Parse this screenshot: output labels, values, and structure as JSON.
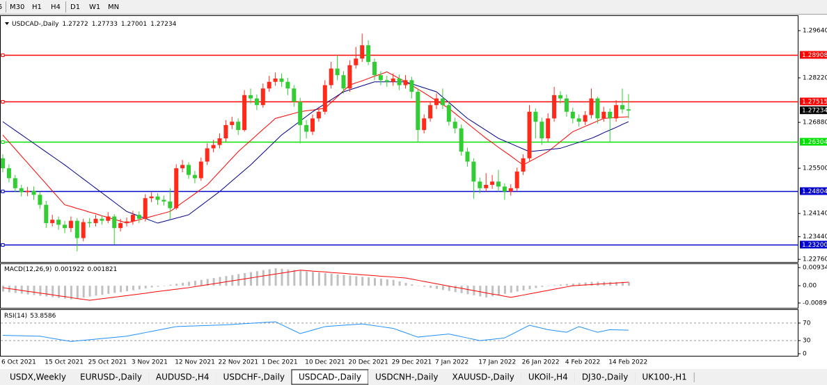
{
  "toolbar": [
    "5",
    "M30",
    "H1",
    "H4",
    "D1",
    "W1",
    "MN"
  ],
  "chart_data": [
    {
      "type": "candlestick",
      "title": "USDCAD-,Daily",
      "categories": [
        "6 Oct 2021",
        null,
        null,
        null,
        null,
        null,
        null,
        "15 Oct 2021",
        null,
        null,
        null,
        null,
        null,
        null,
        "25 Oct 2021",
        null,
        null,
        null,
        null,
        null,
        null,
        "3 Nov 2021",
        null,
        null,
        null,
        null,
        null,
        null,
        "12 Nov 2021",
        null,
        null,
        null,
        null,
        null,
        null,
        "22 Nov 2021",
        null,
        null,
        null,
        null,
        null,
        null,
        "1 Dec 2021",
        null,
        null,
        null,
        null,
        null,
        null,
        "10 Dec 2021",
        null,
        null,
        null,
        null,
        null,
        null,
        "20 Dec 2021",
        null,
        null,
        null,
        null,
        null,
        null,
        "29 Dec 2021",
        null,
        null,
        null,
        null,
        null,
        null,
        "7 Jan 2022",
        null,
        null,
        null,
        null,
        null,
        null,
        "17 Jan 2022",
        null,
        null,
        null,
        null,
        null,
        null,
        "26 Jan 2022",
        null,
        null,
        null,
        null,
        null,
        null,
        "4 Feb 2022",
        null,
        null,
        null,
        null,
        null,
        null,
        "14 Feb 2022",
        null,
        null,
        null
      ],
      "open": [
        1.258,
        1.255,
        1.252,
        1.249,
        1.2478,
        1.2482,
        1.247,
        1.244,
        1.2385,
        1.2395,
        1.238,
        1.237,
        1.2392,
        1.234,
        1.2388,
        1.2385,
        1.2398,
        1.2392,
        1.2405,
        1.237,
        1.2385,
        1.239,
        1.241,
        1.2398,
        1.246,
        1.2465,
        1.2455,
        1.245,
        1.243,
        1.255,
        1.256,
        1.253,
        1.252,
        1.257,
        1.261,
        1.262,
        1.264,
        1.268,
        1.269,
        1.2665,
        1.277,
        1.276,
        1.274,
        1.279,
        1.281,
        1.282,
        1.281,
        1.279,
        1.275,
        1.268,
        1.266,
        1.27,
        1.272,
        1.28,
        1.285,
        1.283,
        1.279,
        1.286,
        1.288,
        1.292,
        1.287,
        1.283,
        1.2815,
        1.281,
        1.282,
        1.28,
        1.2815,
        1.278,
        1.2665,
        1.27,
        1.274,
        1.276,
        1.274,
        1.269,
        1.267,
        1.26,
        1.257,
        1.251,
        1.249,
        1.25,
        1.251,
        1.2495,
        1.248,
        1.249,
        1.254,
        1.258,
        1.272,
        1.269,
        1.264,
        1.27,
        1.277,
        1.276,
        1.272,
        1.27,
        1.269,
        1.271,
        1.276,
        1.27,
        1.272,
        1.27,
        1.274,
        1.27272
      ],
      "high": [
        1.2592,
        1.2562,
        1.253,
        1.25,
        1.2494,
        1.2495,
        1.248,
        1.2452,
        1.241,
        1.2405,
        1.2392,
        1.2405,
        1.24,
        1.2398,
        1.24,
        1.241,
        1.2408,
        1.2418,
        1.2412,
        1.2398,
        1.2402,
        1.2422,
        1.242,
        1.2472,
        1.2478,
        1.2475,
        1.2468,
        1.249,
        1.2562,
        1.2575,
        1.2568,
        1.2542,
        1.2582,
        1.2625,
        1.2635,
        1.2655,
        1.2695,
        1.2705,
        1.27,
        1.2785,
        1.279,
        1.2772,
        1.2805,
        1.2828,
        1.2838,
        1.2835,
        1.2822,
        1.28,
        1.2762,
        1.2695,
        1.2712,
        1.2735,
        1.2815,
        1.287,
        1.289,
        1.2842,
        1.2875,
        1.2915,
        1.2955,
        1.2935,
        1.288,
        1.2842,
        1.2828,
        1.2835,
        1.2832,
        1.283,
        1.2825,
        1.279,
        1.2712,
        1.2752,
        1.2775,
        1.279,
        1.2752,
        1.2702,
        1.2682,
        1.2612,
        1.258,
        1.2522,
        1.2535,
        1.253,
        1.2545,
        1.2505,
        1.2502,
        1.2552,
        1.2592,
        1.274,
        1.273,
        1.2702,
        1.2715,
        1.2795,
        1.2782,
        1.2772,
        1.2732,
        1.2712,
        1.2722,
        1.279,
        1.2765,
        1.2735,
        1.273,
        1.2755,
        1.279,
        1.27733
      ],
      "low": [
        1.2538,
        1.2508,
        1.2478,
        1.2465,
        1.2466,
        1.2455,
        1.2428,
        1.237,
        1.2375,
        1.2365,
        1.2355,
        1.2358,
        1.23,
        1.233,
        1.2372,
        1.2375,
        1.238,
        1.2385,
        1.232,
        1.236,
        1.2375,
        1.238,
        1.2385,
        1.239,
        1.2448,
        1.244,
        1.2438,
        1.2395,
        1.2425,
        1.2538,
        1.2518,
        1.2505,
        1.2512,
        1.256,
        1.2598,
        1.261,
        1.263,
        1.2668,
        1.265,
        1.266,
        1.2745,
        1.2725,
        1.2732,
        1.278,
        1.2798,
        1.2795,
        1.277,
        1.2735,
        1.2625,
        1.264,
        1.265,
        1.269,
        1.2712,
        1.279,
        1.2815,
        1.2775,
        1.278,
        1.285,
        1.287,
        1.286,
        1.2815,
        1.28,
        1.2795,
        1.2798,
        1.2785,
        1.279,
        1.276,
        1.263,
        1.2655,
        1.269,
        1.2728,
        1.2728,
        1.2678,
        1.2655,
        1.2588,
        1.2555,
        1.2458,
        1.2475,
        1.248,
        1.2488,
        1.248,
        1.2455,
        1.2468,
        1.2482,
        1.253,
        1.2572,
        1.264,
        1.262,
        1.263,
        1.269,
        1.2745,
        1.2705,
        1.2685,
        1.2675,
        1.268,
        1.27,
        1.2685,
        1.269,
        1.263,
        1.269,
        1.2715,
        1.27001
      ],
      "close": [
        1.255,
        1.252,
        1.249,
        1.2478,
        1.2482,
        1.247,
        1.244,
        1.2385,
        1.2395,
        1.238,
        1.237,
        1.2392,
        1.234,
        1.2388,
        1.2385,
        1.2398,
        1.2392,
        1.2405,
        1.237,
        1.2385,
        1.239,
        1.241,
        1.2398,
        1.246,
        1.2465,
        1.2455,
        1.245,
        1.243,
        1.255,
        1.256,
        1.253,
        1.252,
        1.257,
        1.261,
        1.262,
        1.264,
        1.268,
        1.269,
        1.2665,
        1.277,
        1.276,
        1.274,
        1.279,
        1.281,
        1.282,
        1.281,
        1.279,
        1.275,
        1.268,
        1.266,
        1.27,
        1.272,
        1.28,
        1.285,
        1.283,
        1.279,
        1.286,
        1.288,
        1.292,
        1.287,
        1.283,
        1.2815,
        1.281,
        1.282,
        1.28,
        1.2815,
        1.278,
        1.2665,
        1.27,
        1.274,
        1.276,
        1.274,
        1.269,
        1.267,
        1.26,
        1.257,
        1.251,
        1.249,
        1.25,
        1.251,
        1.2495,
        1.248,
        1.249,
        1.254,
        1.258,
        1.272,
        1.269,
        1.264,
        1.27,
        1.277,
        1.276,
        1.272,
        1.27,
        1.269,
        1.271,
        1.276,
        1.27,
        1.272,
        1.27,
        1.274,
        1.27272,
        1.27234
      ],
      "up_color": "#ff2a1a",
      "down_color": "#32cd32",
      "moving_averages": [
        {
          "color": "#ff0000",
          "values": [
            1.265,
            1.2629,
            1.2608,
            1.2587,
            1.2566,
            1.2545,
            1.2524,
            1.2503,
            1.2482,
            1.2461,
            1.244,
            1.2435,
            1.2429,
            1.2424,
            1.2418,
            1.2413,
            1.2407,
            1.2402,
            1.2396,
            1.2391,
            1.2385,
            1.239,
            1.2395,
            1.24,
            1.2405,
            1.241,
            1.2415,
            1.242,
            1.2433,
            1.2447,
            1.246,
            1.2473,
            1.2487,
            1.25,
            1.252,
            1.254,
            1.256,
            1.258,
            1.26,
            1.2617,
            1.2633,
            1.265,
            1.2667,
            1.2683,
            1.27,
            1.2705,
            1.271,
            1.2715,
            1.272,
            1.2723,
            1.2725,
            1.2728,
            1.273,
            1.2748,
            1.2765,
            1.2783,
            1.28,
            1.2807,
            1.2813,
            1.282,
            1.2827,
            1.2833,
            1.284,
            1.283,
            1.282,
            1.281,
            1.28,
            1.2788,
            1.2777,
            1.2765,
            1.2753,
            1.2742,
            1.273,
            1.2715,
            1.27,
            1.2685,
            1.267,
            1.2655,
            1.264,
            1.2627,
            1.2613,
            1.26,
            1.2587,
            1.2573,
            1.256,
            1.257,
            1.258,
            1.259,
            1.26,
            1.2615,
            1.263,
            1.2645,
            1.266,
            1.2668,
            1.2676,
            1.2684,
            1.2692,
            1.27,
            1.2701,
            1.2703,
            1.2704,
            1.2705
          ]
        },
        {
          "color": "#00008b",
          "values": [
            1.269,
            1.2677,
            1.2664,
            1.2651,
            1.2638,
            1.2625,
            1.2612,
            1.2599,
            1.2586,
            1.2573,
            1.256,
            1.2546,
            1.2532,
            1.2518,
            1.2504,
            1.249,
            1.2476,
            1.2462,
            1.2448,
            1.2434,
            1.242,
            1.2413,
            1.2406,
            1.2399,
            1.2392,
            1.2385,
            1.239,
            1.2395,
            1.24,
            1.2405,
            1.241,
            1.2424,
            1.2438,
            1.2452,
            1.2466,
            1.248,
            1.2496,
            1.2512,
            1.2528,
            1.2544,
            1.256,
            1.2578,
            1.2596,
            1.2614,
            1.2632,
            1.265,
            1.2664,
            1.2678,
            1.2692,
            1.2706,
            1.272,
            1.2732,
            1.2744,
            1.2756,
            1.2768,
            1.278,
            1.2786,
            1.2792,
            1.2798,
            1.2804,
            1.281,
            1.281,
            1.281,
            1.281,
            1.281,
            1.281,
            1.2804,
            1.2798,
            1.2792,
            1.2786,
            1.278,
            1.2764,
            1.2748,
            1.2732,
            1.2716,
            1.27,
            1.2688,
            1.2676,
            1.2664,
            1.2652,
            1.264,
            1.2632,
            1.2624,
            1.2616,
            1.2608,
            1.26,
            1.2602,
            1.2604,
            1.2606,
            1.2608,
            1.261,
            1.2616,
            1.2622,
            1.2628,
            1.2634,
            1.264,
            1.2648,
            1.2657,
            1.2665,
            1.2673,
            1.2682,
            1.269
          ]
        }
      ],
      "hlines": [
        {
          "value": 1.28908,
          "color": "#ff0000"
        },
        {
          "value": 1.27515,
          "color": "#ff0000"
        },
        {
          "value": 1.26304,
          "color": "#00e000"
        },
        {
          "value": 1.24804,
          "color": "#0000cd"
        },
        {
          "value": 1.232,
          "label": "1.23200",
          "color": "#0000cd"
        }
      ],
      "ylim": [
        1.2268,
        1.3006
      ],
      "yticks": [
        {
          "value": 1.2964,
          "label": "1.29640"
        },
        {
          "value": 1.2822,
          "label": "1.28220"
        },
        {
          "value": 1.2688,
          "label": "1.26880"
        },
        {
          "value": 1.255,
          "label": "1.25500"
        },
        {
          "value": 1.2414,
          "label": "1.24140"
        },
        {
          "value": 1.2344,
          "label": "1.23440"
        },
        {
          "value": 1.2276,
          "label": "1.22760"
        }
      ]
    },
    {
      "type": "macd",
      "title": "MACD(12,26,9)",
      "histogram": {
        "color": "#c0c0c0",
        "values": [
          -0.003,
          -0.0034,
          -0.0037,
          -0.0041,
          -0.0045,
          -0.0048,
          -0.0052,
          -0.0055,
          -0.0059,
          -0.0063,
          -0.0066,
          -0.007,
          -0.0065,
          -0.0061,
          -0.0056,
          -0.0051,
          -0.0047,
          -0.0042,
          -0.0037,
          -0.0033,
          -0.0028,
          -0.0023,
          -0.0019,
          -0.0014,
          -0.0009,
          -0.0005,
          0.0,
          0.0005,
          0.001,
          0.0015,
          0.002,
          0.0025,
          0.003,
          0.0035,
          0.004,
          0.0045,
          0.005,
          0.0055,
          0.006,
          0.0065,
          0.007,
          0.0075,
          0.008,
          0.0085,
          0.009,
          0.0087,
          0.0084,
          0.0081,
          0.0077,
          0.0074,
          0.0071,
          0.0068,
          0.0065,
          0.0062,
          0.0058,
          0.0055,
          0.0052,
          0.0049,
          0.0046,
          0.0043,
          0.0039,
          0.0036,
          0.0033,
          0.003,
          0.0022,
          0.0015,
          0.0007,
          0.0,
          -0.0005,
          -0.0011,
          -0.0016,
          -0.0022,
          -0.0027,
          -0.0033,
          -0.0038,
          -0.0044,
          -0.0049,
          -0.0055,
          -0.006,
          -0.0054,
          -0.0048,
          -0.0042,
          -0.0036,
          -0.003,
          -0.0024,
          -0.0018,
          -0.0012,
          -0.0006,
          0.0,
          0.0003,
          0.0006,
          0.0009,
          0.0011,
          0.0014,
          0.0017,
          0.002,
          0.002,
          0.002,
          0.0019,
          0.0019,
          0.0019,
          0.001922
        ]
      },
      "signal": {
        "color": "#ff0000",
        "values": [
          -0.001,
          -0.0015,
          -0.0019,
          -0.0024,
          -0.0029,
          -0.0033,
          -0.0038,
          -0.0042,
          -0.0047,
          -0.0052,
          -0.0056,
          -0.0061,
          -0.0066,
          -0.007,
          -0.0075,
          -0.0071,
          -0.0067,
          -0.0063,
          -0.0059,
          -0.0055,
          -0.0051,
          -0.0047,
          -0.0043,
          -0.0039,
          -0.0034,
          -0.003,
          -0.0026,
          -0.0022,
          -0.0018,
          -0.0014,
          -0.001,
          -0.0005,
          0.0,
          0.0005,
          0.001,
          0.0015,
          0.002,
          0.0025,
          0.003,
          0.0035,
          0.004,
          0.0045,
          0.005,
          0.0055,
          0.006,
          0.0065,
          0.007,
          0.0075,
          0.008,
          0.0078,
          0.0075,
          0.0073,
          0.0071,
          0.0068,
          0.0066,
          0.0064,
          0.0061,
          0.0059,
          0.0056,
          0.0054,
          0.0052,
          0.0049,
          0.0047,
          0.0045,
          0.0042,
          0.004,
          0.0034,
          0.0028,
          0.0022,
          0.0016,
          0.001,
          0.0004,
          -0.0002,
          -0.0008,
          -0.0013,
          -0.0019,
          -0.0025,
          -0.0031,
          -0.0037,
          -0.0043,
          -0.0048,
          -0.0054,
          -0.006,
          -0.0054,
          -0.0048,
          -0.0042,
          -0.0036,
          -0.003,
          -0.0024,
          -0.0018,
          -0.0012,
          -0.0006,
          0.0,
          0.0002,
          0.0004,
          0.0006,
          0.0008,
          0.001,
          0.0012,
          0.0014,
          0.0016,
          0.001821
        ]
      },
      "ylim": [
        -0.0114,
        0.0115
      ],
      "yticks": [
        0.009345,
        {
          "value": 0,
          "label": "0.00"
        },
        {
          "value": -0.0089,
          "label": "-0.00890"
        }
      ]
    },
    {
      "type": "rsi",
      "title": "RSI(14)",
      "color": "#1e90ff",
      "values": [
        42,
        41.7,
        41.3,
        41,
        40.7,
        40.3,
        40,
        37.6,
        35.2,
        32.8,
        30.4,
        28,
        29.3,
        30.7,
        32,
        33.3,
        34.7,
        36,
        37.3,
        38.7,
        40,
        42.8,
        45.5,
        48.3,
        51,
        53.8,
        56.5,
        59.3,
        62,
        62.5,
        63,
        63.5,
        64,
        64.5,
        65,
        65.5,
        66,
        66.9,
        67.8,
        68.6,
        69.5,
        70.4,
        71.3,
        72.1,
        73,
        66.3,
        59.5,
        52.8,
        46,
        50,
        54,
        58,
        62,
        63,
        64,
        65,
        66,
        67,
        68,
        66,
        64,
        62,
        60,
        58,
        53,
        48,
        43,
        38,
        39.4,
        40.8,
        42.2,
        43.6,
        45,
        42,
        39,
        36,
        33,
        30,
        31.5,
        33,
        34.5,
        36,
        43.3,
        50.5,
        57.8,
        65,
        61.7,
        58.3,
        55,
        53,
        51,
        49,
        55.5,
        62,
        57.7,
        53.3,
        49,
        52,
        55,
        54.6,
        54.2,
        53.8586
      ],
      "ylim": [
        0,
        100
      ],
      "yticks": [
        70,
        30,
        0
      ]
    }
  ],
  "tabs": [
    {
      "label": "USDX,Weekly"
    },
    {
      "label": "EURUSD-,Daily"
    },
    {
      "label": "AUDUSD-,H4"
    },
    {
      "label": "USDCHF-,Daily"
    },
    {
      "label": "USDCAD-,Daily",
      "active": true
    },
    {
      "label": "USDCNH-,Daily"
    },
    {
      "label": "XAUUSD-,Daily"
    },
    {
      "label": "UKOil-,H4"
    },
    {
      "label": "DJ30-,Daily"
    },
    {
      "label": "UK100-,H1"
    }
  ]
}
